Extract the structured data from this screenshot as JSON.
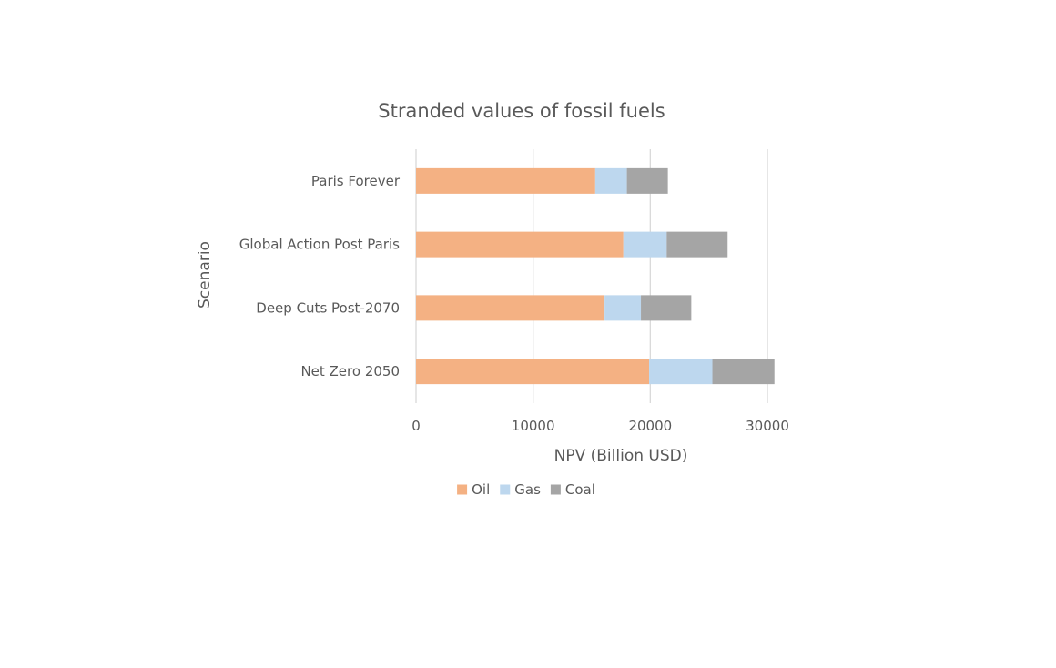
{
  "chart_data": {
    "type": "bar",
    "orientation": "horizontal",
    "stacked": true,
    "title": "Stranded values of fossil fuels",
    "xlabel": "NPV (Billion USD)",
    "ylabel": "Scenario",
    "categories": [
      "Net Zero 2050",
      "Deep Cuts Post-2070",
      "Global Action Post Paris",
      "Paris Forever"
    ],
    "series": [
      {
        "name": "Oil",
        "color": "#f4b183",
        "values": [
          19900,
          16100,
          17700,
          15300
        ]
      },
      {
        "name": "Gas",
        "color": "#bdd7ee",
        "values": [
          5400,
          3100,
          3700,
          2700
        ]
      },
      {
        "name": "Coal",
        "color": "#a5a5a5",
        "values": [
          5300,
          4300,
          5200,
          3500
        ]
      }
    ],
    "xlim": [
      0,
      30000
    ],
    "xticks": [
      0,
      10000,
      20000,
      30000
    ],
    "grid": true,
    "legend_position": "bottom"
  }
}
